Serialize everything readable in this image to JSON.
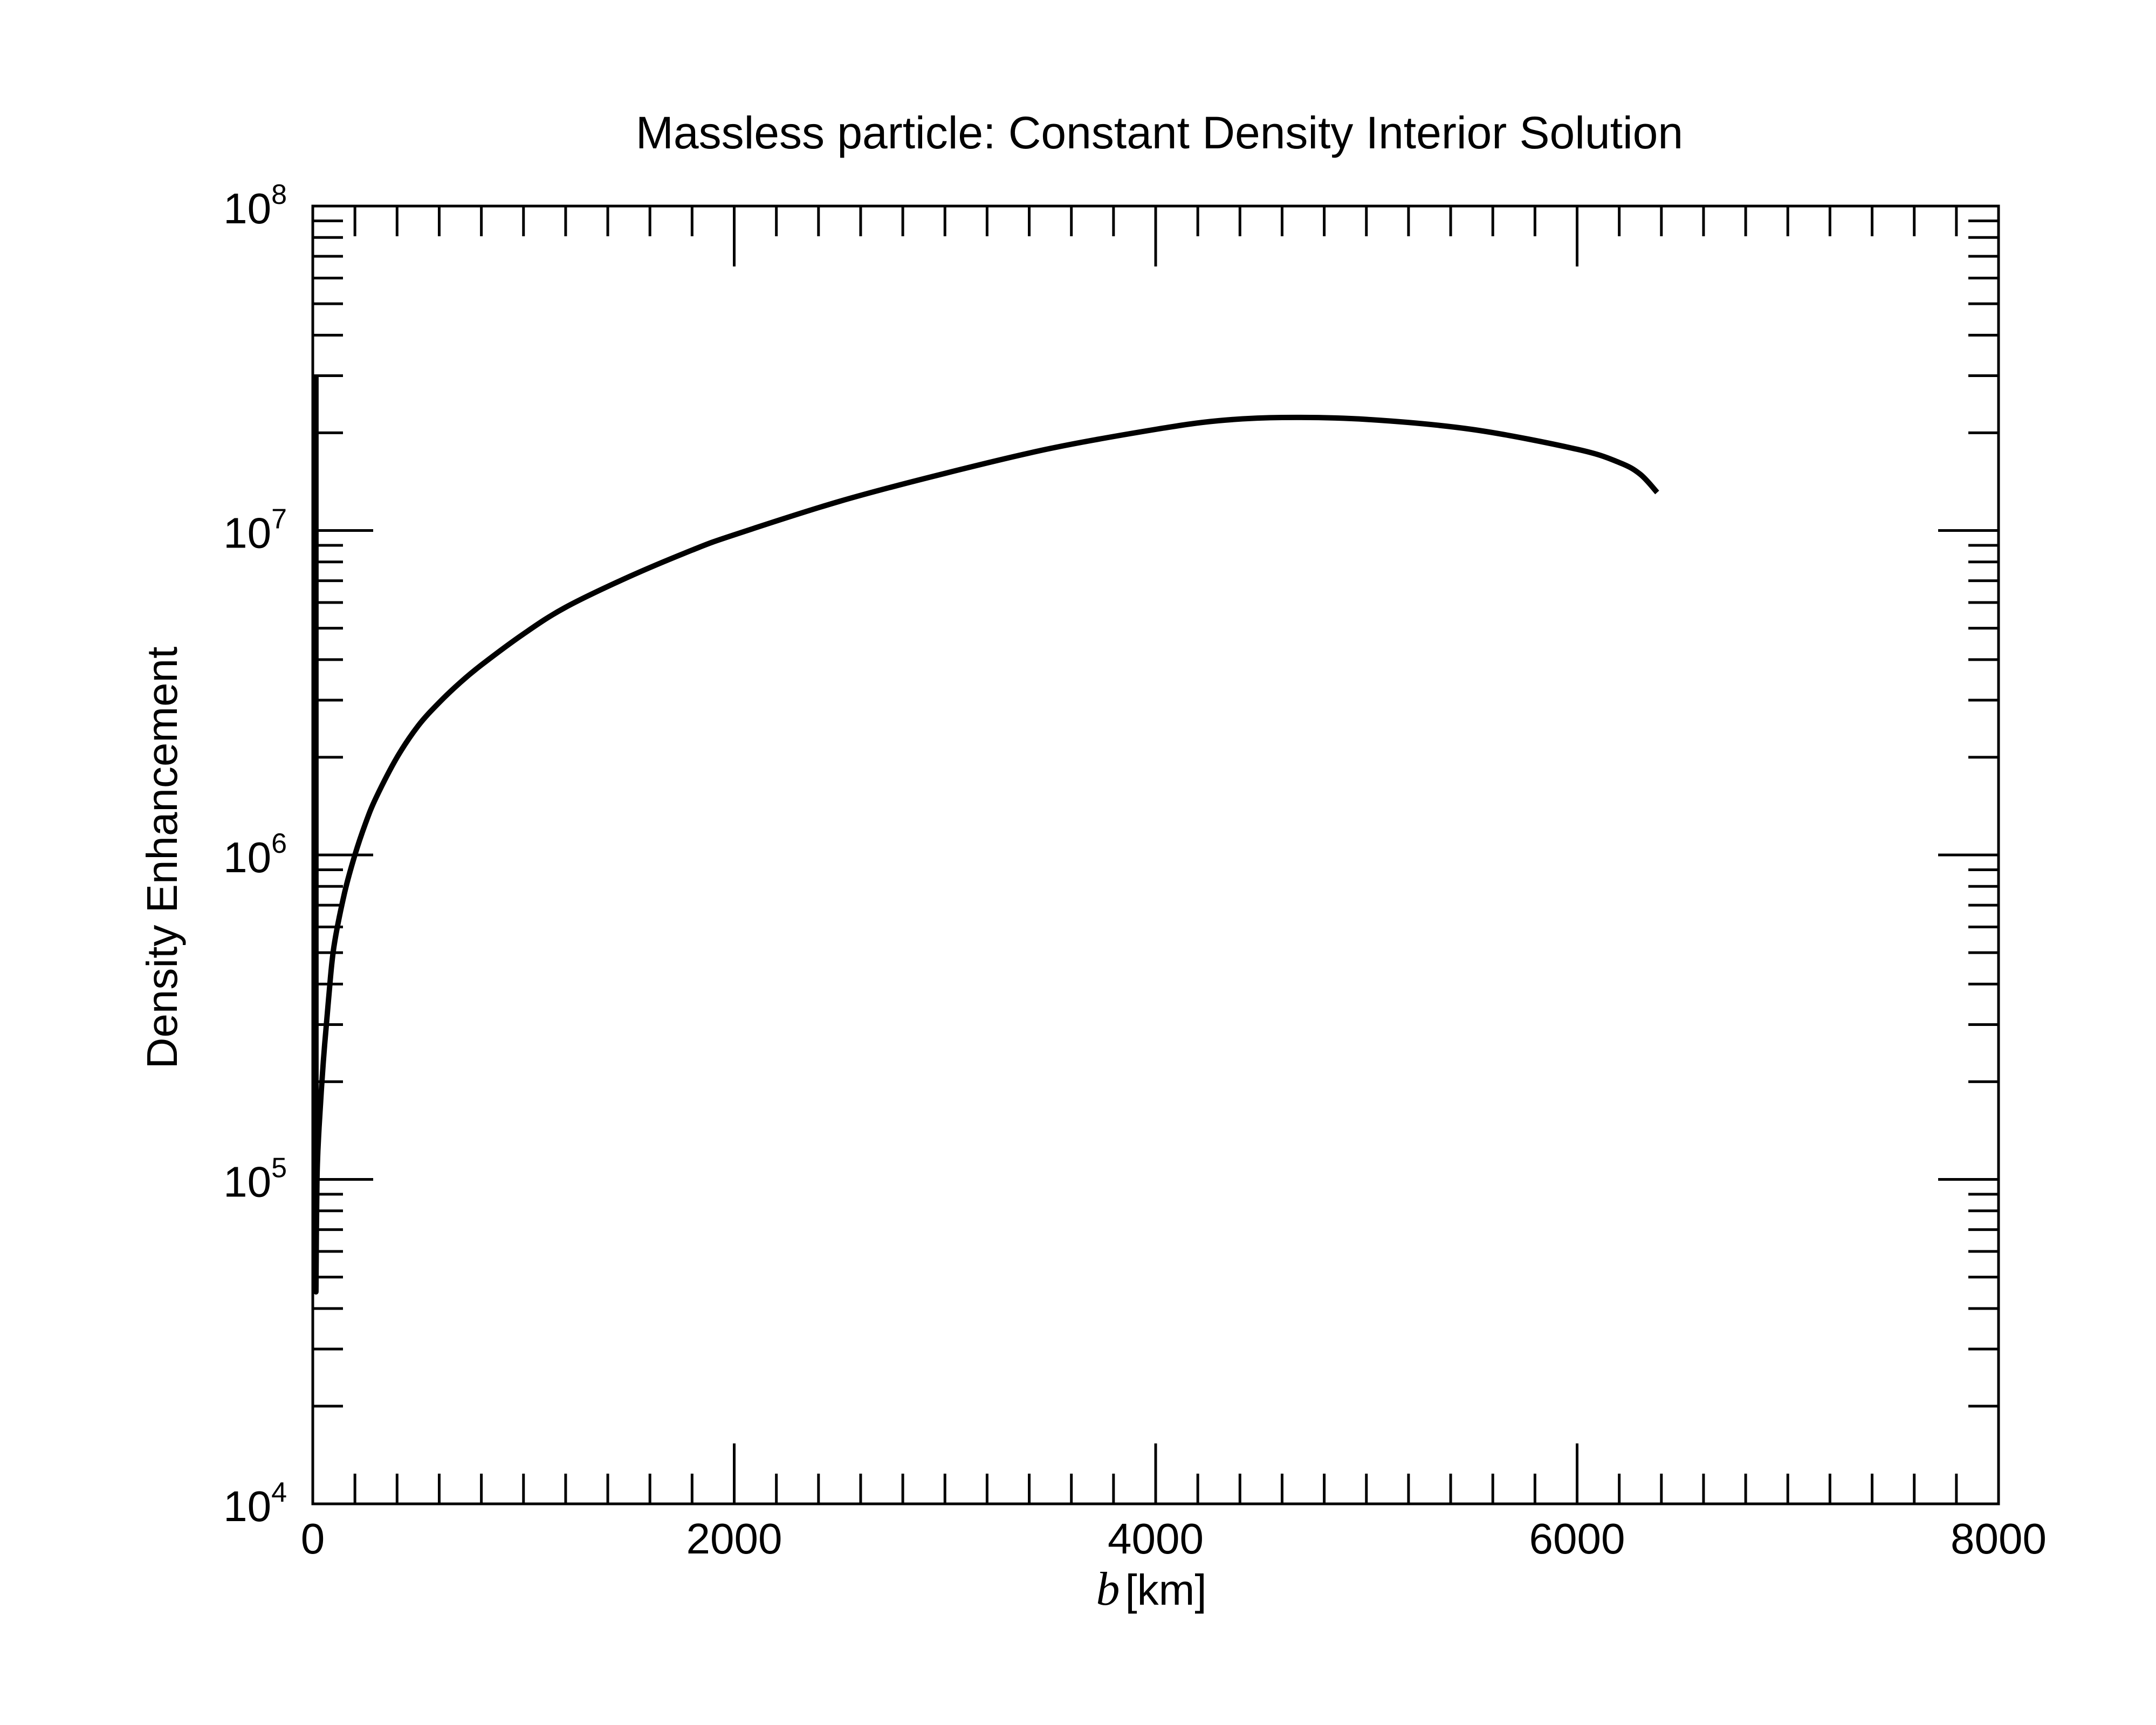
{
  "chart_data": {
    "type": "line",
    "title": "Massless particle: Constant Density Interior Solution",
    "xlabel": {
      "var": "b",
      "unit": "[km]"
    },
    "ylabel": "Density Enhancement",
    "xlim": [
      0,
      8000
    ],
    "ylim": [
      10000,
      100000000
    ],
    "yscale": "log",
    "grid": false,
    "x_ticks": [
      {
        "value": 0,
        "label": "0"
      },
      {
        "value": 2000,
        "label": "2000"
      },
      {
        "value": 4000,
        "label": "4000"
      },
      {
        "value": 6000,
        "label": "6000"
      },
      {
        "value": 8000,
        "label": "8000"
      }
    ],
    "y_ticks": [
      {
        "value": 10000,
        "base": "10",
        "exp": "4"
      },
      {
        "value": 100000,
        "base": "10",
        "exp": "5"
      },
      {
        "value": 1000000,
        "base": "10",
        "exp": "6"
      },
      {
        "value": 10000000,
        "base": "10",
        "exp": "7"
      },
      {
        "value": 100000000,
        "base": "10",
        "exp": "8"
      }
    ],
    "color": "#000000",
    "series": [
      {
        "x": [
          15,
          15,
          20,
          30,
          50,
          75,
          100,
          150,
          200,
          250,
          300,
          400,
          500,
          600,
          700,
          800,
          1000,
          1200,
          1500,
          1800,
          2000,
          2500,
          3000,
          3500,
          4000,
          4300,
          4600,
          5000,
          5500,
          6000,
          6200,
          6300,
          6380
        ],
        "y": [
          30000000,
          45000,
          100000,
          145000,
          230000,
          360000,
          520000,
          760000,
          1000000,
          1250000,
          1500000,
          2000000,
          2500000,
          2950000,
          3400000,
          3850000,
          4800000,
          5800000,
          7200000,
          8700000,
          9700000,
          12300000,
          15000000,
          17900000,
          20500000,
          21800000,
          22300000,
          22000000,
          20500000,
          17800000,
          16200000,
          14900000,
          13100000
        ]
      }
    ]
  }
}
